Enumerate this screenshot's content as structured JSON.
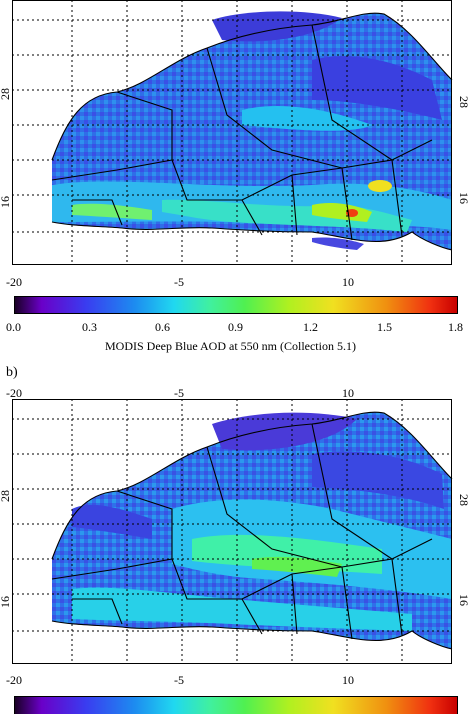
{
  "panel_a": {
    "x_ticks": [
      "-20",
      "-5",
      "10"
    ],
    "lat_ticks": [
      "28",
      "16"
    ],
    "colorbar_ticks": [
      "0.0",
      "0.3",
      "0.6",
      "0.9",
      "1.2",
      "1.5",
      "1.8"
    ],
    "colorbar_title": "MODIS Deep Blue AOD at 550 nm (Collection 5.1)"
  },
  "panel_b": {
    "label": "b)",
    "x_ticks": [
      "-20",
      "-5",
      "10"
    ],
    "lat_ticks": [
      "28",
      "16"
    ]
  },
  "colors": {
    "ocean": "#ffffff",
    "colormap": [
      "#1a0026",
      "#6a00c8",
      "#3a3cf0",
      "#1d8bf0",
      "#20d8f0",
      "#40f0a0",
      "#50f050",
      "#b0f020",
      "#f0e020",
      "#f09010",
      "#f03010",
      "#c80000"
    ]
  }
}
